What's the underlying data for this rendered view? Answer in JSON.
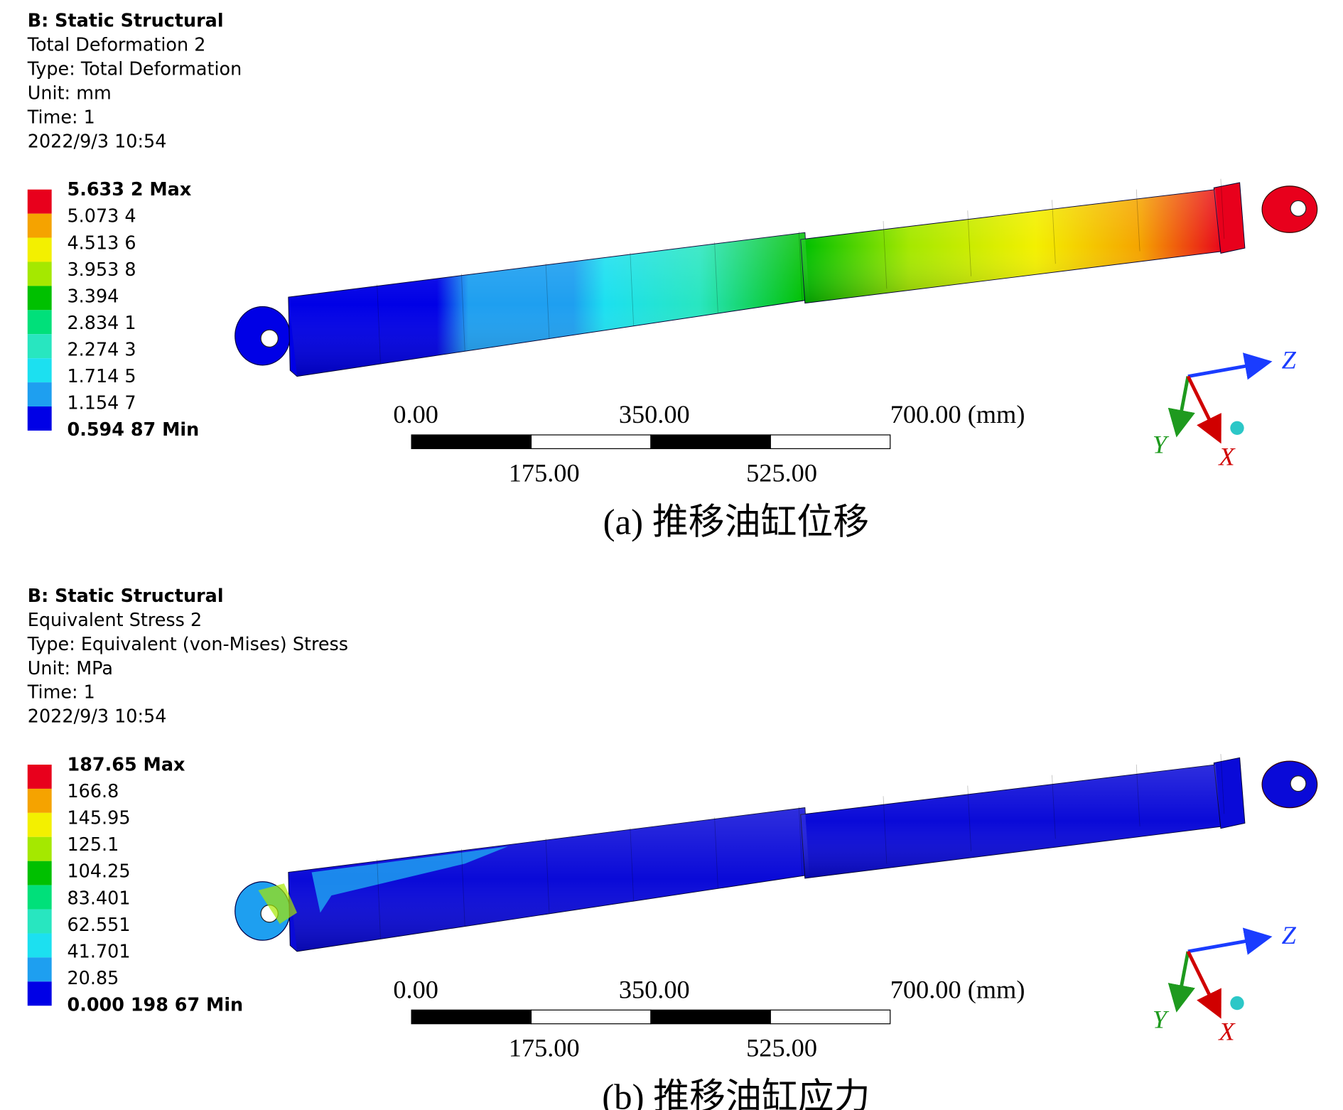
{
  "panels": [
    {
      "header": {
        "title": "B: Static Structural",
        "lines": [
          "Total Deformation 2",
          "Type: Total Deformation",
          "Unit: mm",
          "Time: 1",
          "2022/9/3 10:54"
        ]
      },
      "legend": [
        "5.633 2 Max",
        "5.073 4",
        "4.513 6",
        "3.953 8",
        "3.394",
        "2.834 1",
        "2.274 3",
        "1.714 5",
        "1.154 7",
        "0.594 87 Min"
      ],
      "scale_bar": {
        "top": [
          "0.00",
          "350.00",
          "700.00 (mm)"
        ],
        "bottom": [
          "175.00",
          "525.00"
        ]
      },
      "axes": [
        "Z",
        "Y",
        "X"
      ],
      "caption": "(a) 推移油缸位移"
    },
    {
      "header": {
        "title": "B: Static Structural",
        "lines": [
          "Equivalent Stress 2",
          "Type: Equivalent (von-Mises) Stress",
          "Unit: MPa",
          "Time: 1",
          "2022/9/3 10:54"
        ]
      },
      "legend": [
        "187.65 Max",
        "166.8",
        "145.95",
        "125.1",
        "104.25",
        "83.401",
        "62.551",
        "41.701",
        "20.85",
        "0.000 198 67 Min"
      ],
      "scale_bar": {
        "top": [
          "0.00",
          "350.00",
          "700.00 (mm)"
        ],
        "bottom": [
          "175.00",
          "525.00"
        ]
      },
      "axes": [
        "Z",
        "Y",
        "X"
      ],
      "caption": "(b) 推移油缸应力"
    }
  ]
}
